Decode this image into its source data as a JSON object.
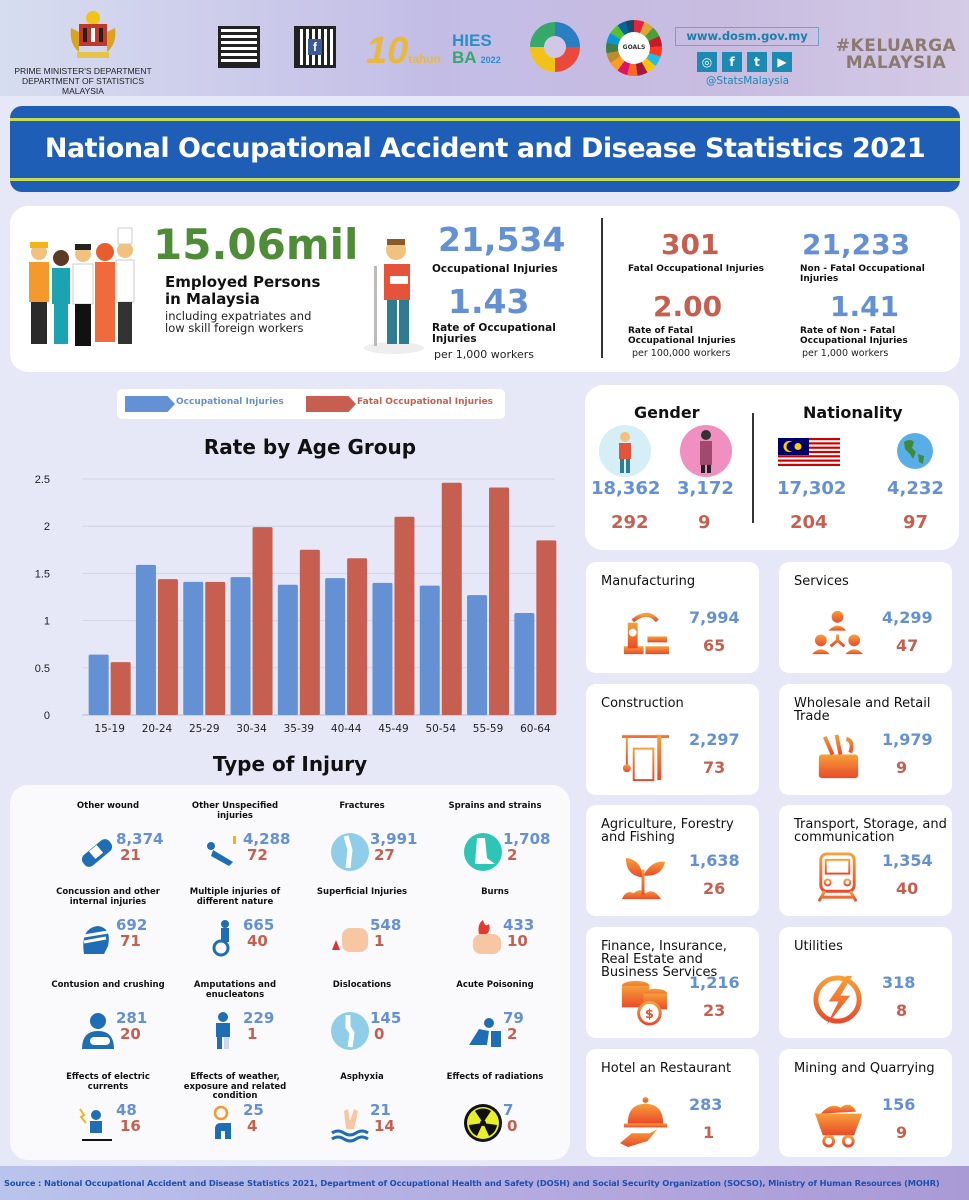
{
  "header": {
    "department_line1": "PRIME MINISTER'S DEPARTMENT",
    "department_line2": "DEPARTMENT OF STATISTICS MALAYSIA",
    "website": "www.dosm.gov.my",
    "social_handle": "@StatsMalaysia",
    "social_icons": [
      "instagram-icon",
      "facebook-icon",
      "twitter-icon",
      "youtube-icon"
    ],
    "hashtag_line1": "#KELUARGA",
    "hashtag_line2": "MALAYSIA",
    "logo_hies_line1": "HIES",
    "logo_hies_line2": "BA",
    "logo_hies_year": "2022",
    "logo_10": "10",
    "logo_10_sub": "tahun"
  },
  "title": "National Occupational Accident and Disease Statistics 2021",
  "summary": {
    "employed_value": "15.06mil",
    "employed_label_line1": "Employed Persons",
    "employed_label_line2": "in Malaysia",
    "employed_note_line1": "including expatriates and",
    "employed_note_line2": "low skill foreign workers",
    "injuries_value": "21,534",
    "injuries_label": "Occupational Injuries",
    "rate_value": "1.43",
    "rate_label_line1": "Rate of Occupational",
    "rate_label_line2": "Injuries",
    "rate_unit": "per 1,000 workers",
    "fatal_value": "301",
    "fatal_label": "Fatal Occupational Injuries",
    "nonfatal_value": "21,233",
    "nonfatal_label_line1": "Non - Fatal Occupational",
    "nonfatal_label_line2": "Injuries",
    "fatal_rate_value": "2.00",
    "fatal_rate_label_line1": "Rate of Fatal",
    "fatal_rate_label_line2": "Occupational Injuries",
    "fatal_rate_unit": "per 100,000 workers",
    "nonfatal_rate_value": "1.41",
    "nonfatal_rate_label_line1": "Rate of Non - Fatal",
    "nonfatal_rate_label_line2": "Occupational Injuries",
    "nonfatal_rate_unit": "per 1,000 workers"
  },
  "legend": {
    "series1": "Occupational Injuries",
    "series2": "Fatal Occupational Injuries"
  },
  "colors": {
    "blue": "#6490d4",
    "red": "#c65f50",
    "green": "#4f8c38",
    "title_bg": "#1e5eb6",
    "accent_line": "#c6dc56"
  },
  "chart_data": {
    "type": "bar",
    "title": "Rate by Age Group",
    "xlabel": "",
    "ylabel": "",
    "categories": [
      "15-19",
      "20-24",
      "25-29",
      "30-34",
      "35-39",
      "40-44",
      "45-49",
      "50-54",
      "55-59",
      "60-64"
    ],
    "series": [
      {
        "name": "Occupational Injuries",
        "color": "#6490d4",
        "values": [
          0.64,
          1.59,
          1.41,
          1.46,
          1.38,
          1.45,
          1.4,
          1.37,
          1.27,
          1.08
        ]
      },
      {
        "name": "Fatal Occupational Injuries",
        "color": "#c65f50",
        "values": [
          0.56,
          1.44,
          1.41,
          1.99,
          1.75,
          1.66,
          2.1,
          2.46,
          2.41,
          1.85
        ]
      }
    ],
    "ylim": [
      0,
      2.5
    ],
    "yticks": [
      "0",
      "0.5",
      "1",
      "1.5",
      "2",
      "2.5"
    ],
    "grid": true,
    "legend_position": "top"
  },
  "demographics": {
    "gender_title": "Gender",
    "nationality_title": "Nationality",
    "male": {
      "injuries": "18,362",
      "fatal": "292"
    },
    "female": {
      "injuries": "3,172",
      "fatal": "9"
    },
    "malaysian": {
      "injuries": "17,302",
      "fatal": "204"
    },
    "foreign": {
      "injuries": "4,232",
      "fatal": "97"
    }
  },
  "injury_section_title": "Type of Injury",
  "injury_types": [
    {
      "name": "Other wound",
      "icon": "bandage-icon",
      "injuries": "8,374",
      "fatal": "21"
    },
    {
      "name": "Other Unspecified injuries",
      "icon": "fallen-person-icon",
      "injuries": "4,288",
      "fatal": "72"
    },
    {
      "name": "Fractures",
      "icon": "knee-bone-icon",
      "injuries": "3,991",
      "fatal": "27"
    },
    {
      "name": "Sprains and strains",
      "icon": "ankle-icon",
      "injuries": "1,708",
      "fatal": "2"
    },
    {
      "name": "Concussion and other internal injuries",
      "icon": "bandaged-head-icon",
      "injuries": "692",
      "fatal": "71"
    },
    {
      "name": "Multiple injuries of different nature",
      "icon": "wheelchair-icon",
      "injuries": "665",
      "fatal": "40"
    },
    {
      "name": "Superficial Injuries",
      "icon": "bleeding-finger-icon",
      "injuries": "548",
      "fatal": "1"
    },
    {
      "name": "Burns",
      "icon": "burning-hand-icon",
      "injuries": "433",
      "fatal": "10"
    },
    {
      "name": "Contusion and crushing",
      "icon": "arm-sling-icon",
      "injuries": "281",
      "fatal": "20"
    },
    {
      "name": "Amputations and enucleatons",
      "icon": "amputee-icon",
      "injuries": "229",
      "fatal": "1"
    },
    {
      "name": "Dislocations",
      "icon": "joint-icon",
      "injuries": "145",
      "fatal": "0"
    },
    {
      "name": "Acute Poisoning",
      "icon": "vomiting-icon",
      "injuries": "79",
      "fatal": "2"
    },
    {
      "name": "Effects of electric currents",
      "icon": "electric-shock-icon",
      "injuries": "48",
      "fatal": "16"
    },
    {
      "name": "Effects of weather, exposure and related condition",
      "icon": "sun-heat-icon",
      "injuries": "25",
      "fatal": "4"
    },
    {
      "name": "Asphyxia",
      "icon": "drowning-icon",
      "injuries": "21",
      "fatal": "14"
    },
    {
      "name": "Effects of radiations",
      "icon": "radiation-icon",
      "injuries": "7",
      "fatal": "0"
    }
  ],
  "sectors": [
    {
      "name": "Manufacturing",
      "icon": "robot-arm-icon",
      "injuries": "7,994",
      "fatal": "65"
    },
    {
      "name": "Services",
      "icon": "people-network-icon",
      "injuries": "4,299",
      "fatal": "47"
    },
    {
      "name": "Construction",
      "icon": "crane-icon",
      "injuries": "2,297",
      "fatal": "73"
    },
    {
      "name": "Wholesale and Retail Trade",
      "icon": "toolbox-icon",
      "injuries": "1,979",
      "fatal": "9"
    },
    {
      "name": "Agriculture, Forestry and Fishing",
      "icon": "plant-icon",
      "injuries": "1,638",
      "fatal": "26"
    },
    {
      "name": "Transport, Storage, and communication",
      "icon": "train-icon",
      "injuries": "1,354",
      "fatal": "40"
    },
    {
      "name": "Finance, Insurance, Real Estate and Business Services",
      "icon": "coins-icon",
      "injuries": "1,216",
      "fatal": "23"
    },
    {
      "name": "Utilities",
      "icon": "lightning-icon",
      "injuries": "318",
      "fatal": "8"
    },
    {
      "name": "Hotel an Restaurant",
      "icon": "cloche-icon",
      "injuries": "283",
      "fatal": "1"
    },
    {
      "name": "Mining and Quarrying",
      "icon": "mine-cart-icon",
      "injuries": "156",
      "fatal": "9"
    }
  ],
  "footer": "Source : National Occupational Accident and Disease Statistics 2021, Department of Occupational Health and Safety (DOSH) and Social Security Organization (SOCSO), Ministry of Human Resources (MOHR)"
}
